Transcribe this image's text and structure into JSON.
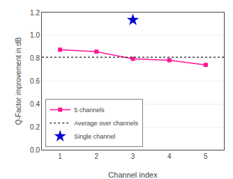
{
  "chart_data": {
    "type": "line",
    "xlabel": "Channel index",
    "ylabel": "Q-Factor improvement in dB",
    "xlim": [
      0.5,
      5.5
    ],
    "xticks": [
      1,
      2,
      3,
      4,
      5
    ],
    "ylim": [
      0.0,
      1.2
    ],
    "yticks": [
      {
        "value": 0.0,
        "label": "0.0"
      },
      0.2,
      0.4,
      0.6,
      0.8,
      {
        "value": 1.0,
        "label": "1.0"
      },
      1.2
    ],
    "grid": "y",
    "legend": "lower left",
    "series": [
      {
        "name": "5 channels",
        "type": "line",
        "color": "#FF1493",
        "marker": "square",
        "line_style": "solid",
        "x": [
          1,
          2,
          3,
          4,
          5
        ],
        "values": [
          0.875,
          0.858,
          0.795,
          0.783,
          0.742
        ]
      },
      {
        "name": "Average over channels",
        "type": "hline",
        "color": "#222222",
        "line_style": "dotted",
        "values": [
          0.81
        ]
      },
      {
        "name": "Single channel",
        "type": "scatter",
        "color": "#0000CD",
        "marker": "star",
        "x": [
          3
        ],
        "values": [
          1.135
        ]
      }
    ]
  }
}
